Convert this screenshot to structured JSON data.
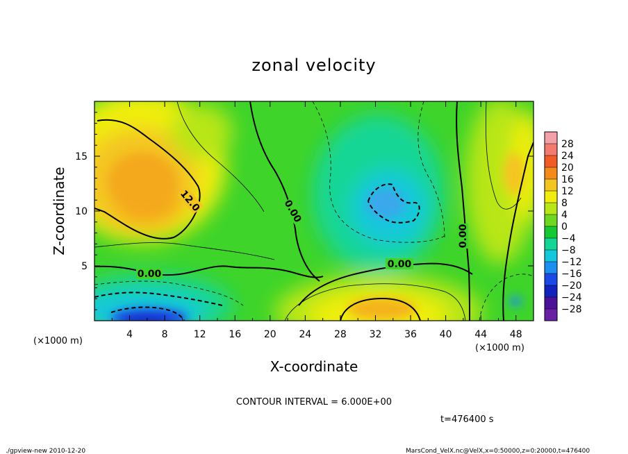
{
  "chart_data": {
    "type": "heatmap",
    "title": "zonal velocity",
    "xlabel": "X-coordinate",
    "ylabel": "Z-coordinate",
    "x_unit": "(×1000 m)",
    "y_unit": "(×1000 m)",
    "xlim": [
      0,
      50
    ],
    "ylim": [
      0,
      20
    ],
    "x_ticks": [
      4,
      8,
      12,
      16,
      20,
      24,
      28,
      32,
      36,
      40,
      44,
      48
    ],
    "y_ticks": [
      5,
      10,
      15
    ],
    "colorbar": {
      "labels": [
        "28",
        "24",
        "20",
        "16",
        "12",
        "8",
        "4",
        "0",
        "−4",
        "−8",
        "−12",
        "−16",
        "−20",
        "−24",
        "−28"
      ],
      "colors": [
        "#f4a0a8",
        "#f27a6e",
        "#f25a28",
        "#f48a1a",
        "#f4c420",
        "#f0ee10",
        "#b8e618",
        "#6ed820",
        "#16c832",
        "#12d696",
        "#14c8dc",
        "#1c8ff0",
        "#1c48e8",
        "#1222bc",
        "#4a1298",
        "#6a20a4"
      ]
    },
    "contour_labels": [
      "12.0",
      "0.00",
      "0.00",
      "0.00",
      "0.00"
    ],
    "contour_interval_text": "CONTOUR INTERVAL = 6.000E+00",
    "time_text": "t=476400 s",
    "grid": false,
    "legend": "colorbar-right"
  },
  "footer": {
    "left": "./gpview-new   2010-12-20",
    "right": "MarsCond_VelX.nc@VelX,x=0:50000,z=0:20000,t=476400"
  }
}
